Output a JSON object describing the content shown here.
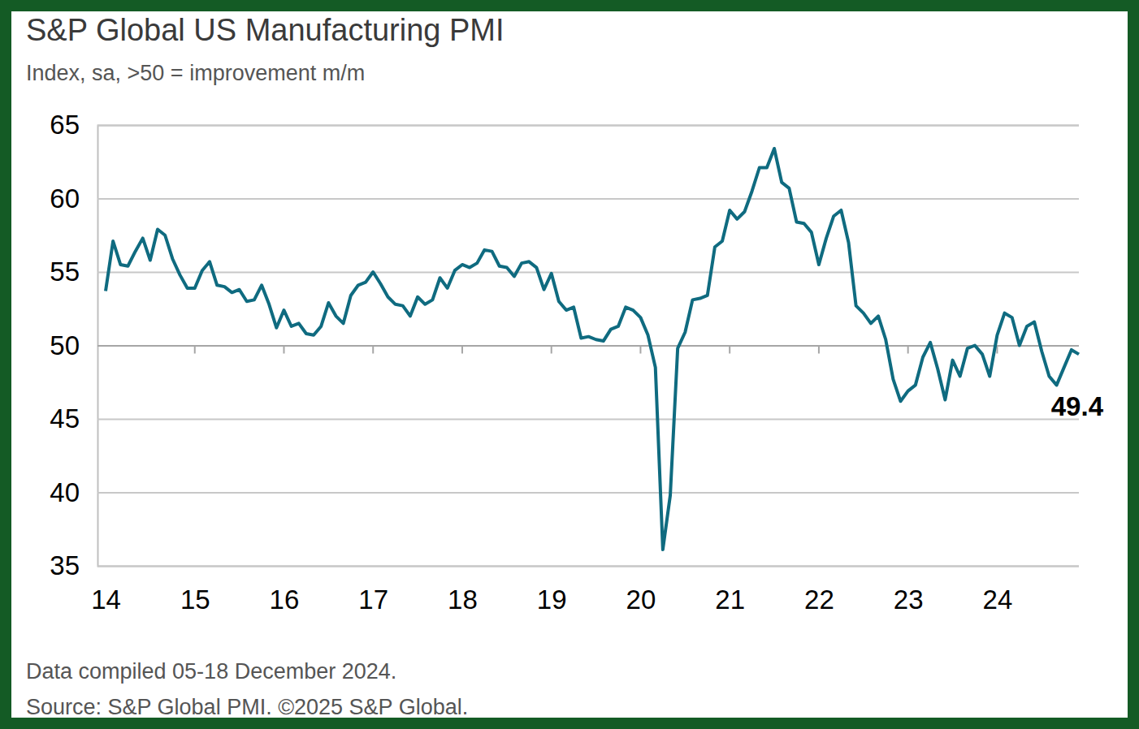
{
  "chart_data": {
    "type": "line",
    "title": "S&P Global US Manufacturing PMI",
    "subtitle": "Index, sa, >50 = improvement m/m",
    "footnotes": [
      "Data compiled 05-18 December 2024.",
      "Source: S&P Global PMI. ©2025 S&P Global."
    ],
    "annotations": [
      "49.4"
    ],
    "color": "#0f6b80",
    "grid": true,
    "ylim": [
      35,
      65
    ],
    "yticks": [
      35,
      40,
      45,
      50,
      55,
      60,
      65
    ],
    "categories": [
      "14",
      null,
      null,
      null,
      null,
      null,
      null,
      null,
      null,
      null,
      null,
      null,
      "15",
      null,
      null,
      null,
      null,
      null,
      null,
      null,
      null,
      null,
      null,
      null,
      "16",
      null,
      null,
      null,
      null,
      null,
      null,
      null,
      null,
      null,
      null,
      null,
      "17",
      null,
      null,
      null,
      null,
      null,
      null,
      null,
      null,
      null,
      null,
      null,
      "18",
      null,
      null,
      null,
      null,
      null,
      null,
      null,
      null,
      null,
      null,
      null,
      "19",
      null,
      null,
      null,
      null,
      null,
      null,
      null,
      null,
      null,
      null,
      null,
      "20",
      null,
      null,
      null,
      null,
      null,
      null,
      null,
      null,
      null,
      null,
      null,
      "21",
      null,
      null,
      null,
      null,
      null,
      null,
      null,
      null,
      null,
      null,
      null,
      "22",
      null,
      null,
      null,
      null,
      null,
      null,
      null,
      null,
      null,
      null,
      null,
      "23",
      null,
      null,
      null,
      null,
      null,
      null,
      null,
      null,
      null,
      null,
      null,
      "24",
      null,
      null,
      null,
      null,
      null,
      null,
      null,
      null,
      null,
      null,
      null
    ],
    "values": [
      53.7,
      57.1,
      55.5,
      55.4,
      56.4,
      57.3,
      55.8,
      57.9,
      57.5,
      55.9,
      54.8,
      53.9,
      53.9,
      55.1,
      55.7,
      54.1,
      54.0,
      53.6,
      53.8,
      53.0,
      53.1,
      54.1,
      52.8,
      51.2,
      52.4,
      51.3,
      51.5,
      50.8,
      50.7,
      51.3,
      52.9,
      52.0,
      51.5,
      53.4,
      54.1,
      54.3,
      55.0,
      54.2,
      53.3,
      52.8,
      52.7,
      52.0,
      53.3,
      52.8,
      53.1,
      54.6,
      53.9,
      55.1,
      55.5,
      55.3,
      55.6,
      56.5,
      56.4,
      55.4,
      55.3,
      54.7,
      55.6,
      55.7,
      55.3,
      53.8,
      54.9,
      53.0,
      52.4,
      52.6,
      50.5,
      50.6,
      50.4,
      50.3,
      51.1,
      51.3,
      52.6,
      52.4,
      51.9,
      50.7,
      48.5,
      36.1,
      39.8,
      49.8,
      50.9,
      53.1,
      53.2,
      53.4,
      56.7,
      57.1,
      59.2,
      58.6,
      59.1,
      60.5,
      62.1,
      62.1,
      63.4,
      61.1,
      60.7,
      58.4,
      58.3,
      57.7,
      55.5,
      57.3,
      58.8,
      59.2,
      57.0,
      52.7,
      52.2,
      51.5,
      52.0,
      50.4,
      47.7,
      46.2,
      46.9,
      47.3,
      49.2,
      50.2,
      48.4,
      46.3,
      49.0,
      47.9,
      49.8,
      50.0,
      49.4,
      47.9,
      50.7,
      52.2,
      51.9,
      50.0,
      51.3,
      51.6,
      49.6,
      47.9,
      47.3,
      48.5,
      49.7,
      49.4
    ]
  }
}
